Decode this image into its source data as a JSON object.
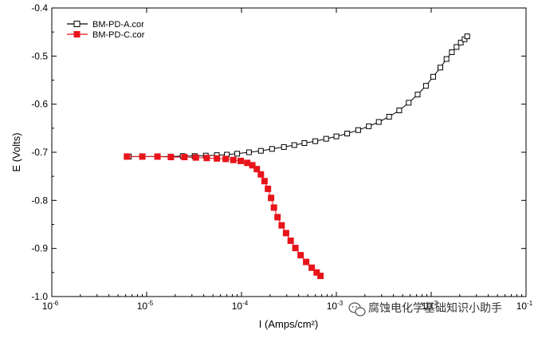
{
  "chart_data": {
    "type": "scatter",
    "title": "",
    "xlabel": "I (Amps/cm²)",
    "ylabel": "E (Volts)",
    "x_scale": "log",
    "xlim": [
      1e-06,
      0.1
    ],
    "ylim": [
      -1.0,
      -0.4
    ],
    "grid": false,
    "legend_position": "top-left",
    "x_ticks": [
      {
        "value": 1e-06,
        "base": "10",
        "exp": "-6"
      },
      {
        "value": 1e-05,
        "base": "10",
        "exp": "-5"
      },
      {
        "value": 0.0001,
        "base": "10",
        "exp": "-4"
      },
      {
        "value": 0.001,
        "base": "10",
        "exp": "-3"
      },
      {
        "value": 0.01,
        "base": "10",
        "exp": "-2"
      },
      {
        "value": 0.1,
        "base": "10",
        "exp": "-1"
      }
    ],
    "y_ticks": [
      {
        "value": -0.4,
        "label": "-0.4"
      },
      {
        "value": -0.5,
        "label": "-0.5"
      },
      {
        "value": -0.6,
        "label": "-0.6"
      },
      {
        "value": -0.7,
        "label": "-0.7"
      },
      {
        "value": -0.8,
        "label": "-0.8"
      },
      {
        "value": -0.9,
        "label": "-0.9"
      },
      {
        "value": -1.0,
        "label": "-1.0"
      }
    ],
    "series": [
      {
        "name": "BM-PD-A.cor",
        "color": "#000000",
        "marker": "open-square",
        "x": [
          6.5e-06,
          9e-06,
          1.3e-05,
          1.8e-05,
          2.4e-05,
          3.2e-05,
          4.2e-05,
          5.5e-05,
          7e-05,
          9e-05,
          0.00012,
          0.00016,
          0.00021,
          0.00028,
          0.00036,
          0.00046,
          0.0006,
          0.00078,
          0.001,
          0.0013,
          0.0017,
          0.0022,
          0.0028,
          0.0036,
          0.0046,
          0.0058,
          0.0072,
          0.0088,
          0.0105,
          0.0125,
          0.0145,
          0.0165,
          0.0185,
          0.0205,
          0.0225,
          0.024
        ],
        "y": [
          -0.709,
          -0.709,
          -0.709,
          -0.709,
          -0.708,
          -0.708,
          -0.707,
          -0.706,
          -0.705,
          -0.703,
          -0.7,
          -0.697,
          -0.693,
          -0.689,
          -0.685,
          -0.681,
          -0.677,
          -0.672,
          -0.667,
          -0.661,
          -0.654,
          -0.646,
          -0.637,
          -0.626,
          -0.613,
          -0.597,
          -0.58,
          -0.562,
          -0.543,
          -0.524,
          -0.506,
          -0.492,
          -0.481,
          -0.472,
          -0.465,
          -0.459
        ]
      },
      {
        "name": "BM-PD-C.cor",
        "color": "#e8141b",
        "marker": "filled-square",
        "x": [
          6.2e-06,
          9e-06,
          1.3e-05,
          1.8e-05,
          2.5e-05,
          3.3e-05,
          4.3e-05,
          5.5e-05,
          6.8e-05,
          8.2e-05,
          9.8e-05,
          0.000115,
          0.00013,
          0.000145,
          0.00016,
          0.000175,
          0.00019,
          0.000205,
          0.00022,
          0.00024,
          0.000265,
          0.000295,
          0.00033,
          0.00037,
          0.00042,
          0.00048,
          0.00055,
          0.00062,
          0.00068
        ],
        "y": [
          -0.709,
          -0.709,
          -0.709,
          -0.71,
          -0.71,
          -0.711,
          -0.712,
          -0.713,
          -0.714,
          -0.716,
          -0.718,
          -0.722,
          -0.727,
          -0.735,
          -0.746,
          -0.76,
          -0.776,
          -0.795,
          -0.815,
          -0.835,
          -0.852,
          -0.868,
          -0.884,
          -0.899,
          -0.914,
          -0.928,
          -0.94,
          -0.95,
          -0.957
        ]
      }
    ]
  },
  "watermark": {
    "icon": "wechat-icon",
    "text": "腐蚀电化学基础知识小助手"
  }
}
